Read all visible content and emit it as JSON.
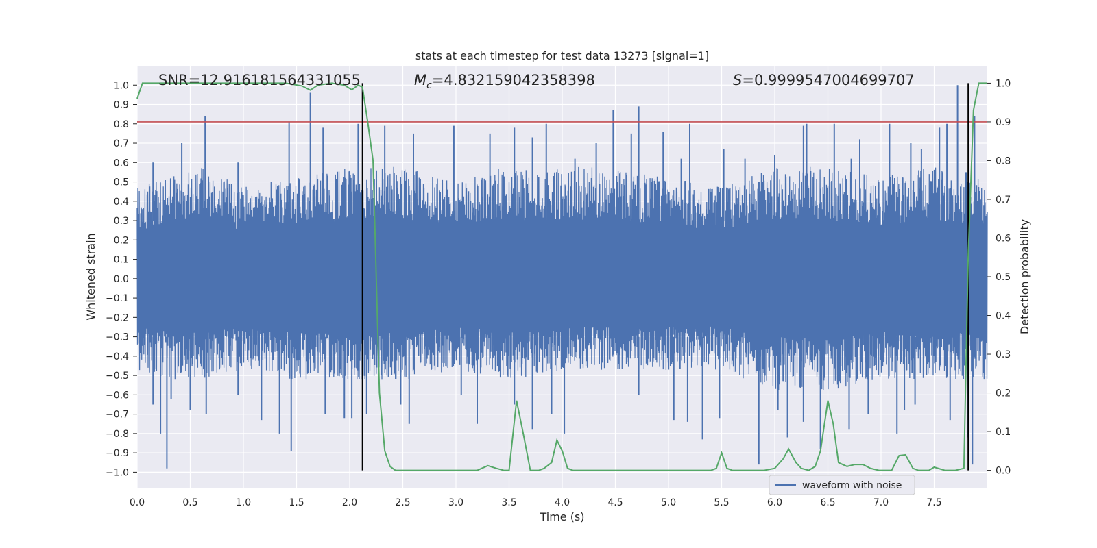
{
  "chart_data": {
    "type": "line",
    "title": "stats at each timestep for test data 13273 [signal=1]",
    "xlabel": "Time (s)",
    "ylabel_left": "Whitened strain",
    "ylabel_right": "Detection probability",
    "xlim": [
      0.0,
      8.0
    ],
    "ylim_left": [
      -1.08,
      1.1
    ],
    "ylim_right": [
      -0.045,
      1.045
    ],
    "x_ticks": [
      "0.0",
      "0.5",
      "1.0",
      "1.5",
      "2.0",
      "2.5",
      "3.0",
      "3.5",
      "4.0",
      "4.5",
      "5.0",
      "5.5",
      "6.0",
      "6.5",
      "7.0",
      "7.5"
    ],
    "y_left_ticks": [
      "1.0",
      "0.9",
      "0.8",
      "0.7",
      "0.6",
      "0.5",
      "0.4",
      "0.3",
      "0.2",
      "0.1",
      "0.0",
      "−0.1",
      "−0.2",
      "−0.3",
      "−0.4",
      "−0.5",
      "−0.6",
      "−0.7",
      "−0.8",
      "−0.9",
      "−1.0"
    ],
    "y_right_ticks": [
      "1.0",
      "0.9",
      "0.8",
      "0.7",
      "0.6",
      "0.5",
      "0.4",
      "0.3",
      "0.2",
      "0.1",
      "0.0"
    ],
    "grid": true,
    "legend": {
      "location": "lower-right",
      "entries": [
        "waveform with noise"
      ]
    },
    "annotations": {
      "snr": "SNR=12.916181564331055",
      "mc_symbol": "M",
      "mc_sub": "c",
      "mc_value": "=4.832159042358398",
      "s_symbol": "S",
      "s_value": "=0.9999547004699707"
    },
    "threshold_right": 0.9,
    "vlines_x": [
      2.12,
      7.82
    ],
    "series": [
      {
        "name": "waveform with noise",
        "axis": "left",
        "color": "#4c72b0",
        "envelope_upper": [
          [
            0.0,
            0.45
          ],
          [
            0.3,
            0.5
          ],
          [
            0.6,
            0.55
          ],
          [
            1.0,
            0.45
          ],
          [
            1.5,
            0.5
          ],
          [
            2.0,
            0.55
          ],
          [
            2.5,
            0.55
          ],
          [
            3.0,
            0.5
          ],
          [
            3.5,
            0.55
          ],
          [
            4.0,
            0.55
          ],
          [
            4.5,
            0.55
          ],
          [
            5.0,
            0.5
          ],
          [
            5.5,
            0.45
          ],
          [
            6.0,
            0.55
          ],
          [
            6.5,
            0.55
          ],
          [
            7.0,
            0.5
          ],
          [
            7.5,
            0.55
          ],
          [
            8.0,
            0.5
          ]
        ],
        "envelope_lower": [
          [
            0.0,
            -0.45
          ],
          [
            0.3,
            -0.5
          ],
          [
            0.6,
            -0.5
          ],
          [
            1.0,
            -0.45
          ],
          [
            1.5,
            -0.5
          ],
          [
            2.0,
            -0.5
          ],
          [
            2.5,
            -0.5
          ],
          [
            3.0,
            -0.45
          ],
          [
            3.5,
            -0.5
          ],
          [
            4.0,
            -0.45
          ],
          [
            4.5,
            -0.45
          ],
          [
            5.0,
            -0.45
          ],
          [
            5.5,
            -0.45
          ],
          [
            6.0,
            -0.55
          ],
          [
            6.5,
            -0.55
          ],
          [
            7.0,
            -0.5
          ],
          [
            7.5,
            -0.5
          ],
          [
            8.0,
            -0.5
          ]
        ],
        "peaks": [
          [
            0.15,
            0.6
          ],
          [
            0.42,
            0.7
          ],
          [
            0.64,
            0.84
          ],
          [
            0.95,
            0.6
          ],
          [
            1.43,
            0.81
          ],
          [
            1.63,
            0.96
          ],
          [
            1.75,
            0.78
          ],
          [
            2.08,
            0.8
          ],
          [
            2.33,
            0.79
          ],
          [
            2.6,
            0.75
          ],
          [
            2.98,
            0.79
          ],
          [
            3.32,
            0.75
          ],
          [
            3.55,
            0.78
          ],
          [
            3.72,
            0.73
          ],
          [
            3.85,
            0.8
          ],
          [
            4.12,
            0.62
          ],
          [
            4.32,
            0.7
          ],
          [
            4.48,
            0.87
          ],
          [
            4.65,
            0.75
          ],
          [
            4.72,
            0.89
          ],
          [
            4.95,
            0.76
          ],
          [
            5.12,
            0.62
          ],
          [
            5.2,
            0.8
          ],
          [
            5.52,
            0.67
          ],
          [
            5.72,
            0.62
          ],
          [
            6.0,
            0.64
          ],
          [
            6.27,
            0.79
          ],
          [
            6.3,
            0.8
          ],
          [
            6.56,
            0.8
          ],
          [
            6.72,
            0.62
          ],
          [
            6.8,
            0.72
          ],
          [
            7.08,
            0.8
          ],
          [
            7.28,
            0.7
          ],
          [
            7.38,
            0.67
          ],
          [
            7.55,
            0.78
          ],
          [
            7.62,
            0.8
          ],
          [
            7.72,
            1.0
          ],
          [
            7.8,
            0.55
          ],
          [
            7.88,
            0.84
          ]
        ],
        "troughs": [
          [
            0.15,
            -0.65
          ],
          [
            0.22,
            -0.8
          ],
          [
            0.28,
            -0.98
          ],
          [
            0.32,
            -0.62
          ],
          [
            0.5,
            -0.68
          ],
          [
            0.65,
            -0.7
          ],
          [
            0.95,
            -0.6
          ],
          [
            1.17,
            -0.73
          ],
          [
            1.34,
            -0.8
          ],
          [
            1.45,
            -0.89
          ],
          [
            1.77,
            -0.7
          ],
          [
            1.95,
            -0.72
          ],
          [
            2.02,
            -0.72
          ],
          [
            2.16,
            -0.7
          ],
          [
            2.48,
            -0.65
          ],
          [
            2.56,
            -0.75
          ],
          [
            3.05,
            -0.6
          ],
          [
            3.2,
            -0.75
          ],
          [
            3.55,
            -0.65
          ],
          [
            3.72,
            -0.78
          ],
          [
            3.9,
            -0.7
          ],
          [
            4.02,
            -0.8
          ],
          [
            4.72,
            -0.6
          ],
          [
            5.05,
            -0.73
          ],
          [
            5.18,
            -0.74
          ],
          [
            5.32,
            -0.83
          ],
          [
            5.48,
            -0.72
          ],
          [
            5.85,
            -0.96
          ],
          [
            6.03,
            -0.68
          ],
          [
            6.12,
            -0.82
          ],
          [
            6.27,
            -0.74
          ],
          [
            6.43,
            -0.88
          ],
          [
            6.7,
            -0.78
          ],
          [
            6.88,
            -0.7
          ],
          [
            7.15,
            -0.8
          ],
          [
            7.22,
            -0.68
          ],
          [
            7.32,
            -0.65
          ],
          [
            7.65,
            -0.73
          ],
          [
            7.82,
            -0.82
          ],
          [
            7.86,
            -0.96
          ]
        ]
      },
      {
        "name": "",
        "axis": "right",
        "color": "#55a868",
        "points": [
          [
            0.0,
            0.96
          ],
          [
            0.05,
            1.0
          ],
          [
            0.25,
            1.0
          ],
          [
            0.5,
            1.0
          ],
          [
            1.0,
            1.0
          ],
          [
            1.4,
            1.0
          ],
          [
            1.55,
            0.993
          ],
          [
            1.63,
            0.982
          ],
          [
            1.7,
            0.995
          ],
          [
            1.83,
            1.0
          ],
          [
            1.95,
            0.995
          ],
          [
            2.02,
            0.983
          ],
          [
            2.08,
            0.995
          ],
          [
            2.12,
            0.99
          ],
          [
            2.17,
            0.9
          ],
          [
            2.22,
            0.8
          ],
          [
            2.28,
            0.2
          ],
          [
            2.33,
            0.05
          ],
          [
            2.38,
            0.01
          ],
          [
            2.43,
            0.0
          ],
          [
            2.5,
            0.0
          ],
          [
            3.0,
            0.0
          ],
          [
            3.2,
            0.0
          ],
          [
            3.3,
            0.012
          ],
          [
            3.38,
            0.005
          ],
          [
            3.45,
            0.0
          ],
          [
            3.5,
            0.0
          ],
          [
            3.57,
            0.18
          ],
          [
            3.63,
            0.1
          ],
          [
            3.7,
            0.0
          ],
          [
            3.78,
            0.0
          ],
          [
            3.83,
            0.005
          ],
          [
            3.9,
            0.02
          ],
          [
            3.95,
            0.078
          ],
          [
            4.0,
            0.05
          ],
          [
            4.05,
            0.005
          ],
          [
            4.1,
            0.0
          ],
          [
            4.5,
            0.0
          ],
          [
            5.0,
            0.0
          ],
          [
            5.4,
            0.0
          ],
          [
            5.45,
            0.005
          ],
          [
            5.5,
            0.045
          ],
          [
            5.55,
            0.005
          ],
          [
            5.6,
            0.0
          ],
          [
            5.9,
            0.0
          ],
          [
            6.0,
            0.005
          ],
          [
            6.08,
            0.03
          ],
          [
            6.13,
            0.055
          ],
          [
            6.2,
            0.02
          ],
          [
            6.25,
            0.005
          ],
          [
            6.32,
            0.0
          ],
          [
            6.38,
            0.01
          ],
          [
            6.43,
            0.05
          ],
          [
            6.5,
            0.18
          ],
          [
            6.55,
            0.12
          ],
          [
            6.6,
            0.02
          ],
          [
            6.68,
            0.01
          ],
          [
            6.75,
            0.015
          ],
          [
            6.83,
            0.015
          ],
          [
            6.9,
            0.005
          ],
          [
            6.98,
            0.0
          ],
          [
            7.1,
            0.0
          ],
          [
            7.17,
            0.038
          ],
          [
            7.23,
            0.04
          ],
          [
            7.3,
            0.005
          ],
          [
            7.35,
            0.0
          ],
          [
            7.45,
            0.0
          ],
          [
            7.5,
            0.008
          ],
          [
            7.6,
            0.0
          ],
          [
            7.7,
            0.0
          ],
          [
            7.78,
            0.005
          ],
          [
            7.82,
            0.55
          ],
          [
            7.87,
            0.93
          ],
          [
            7.92,
            1.0
          ],
          [
            8.0,
            1.0
          ]
        ]
      }
    ]
  }
}
